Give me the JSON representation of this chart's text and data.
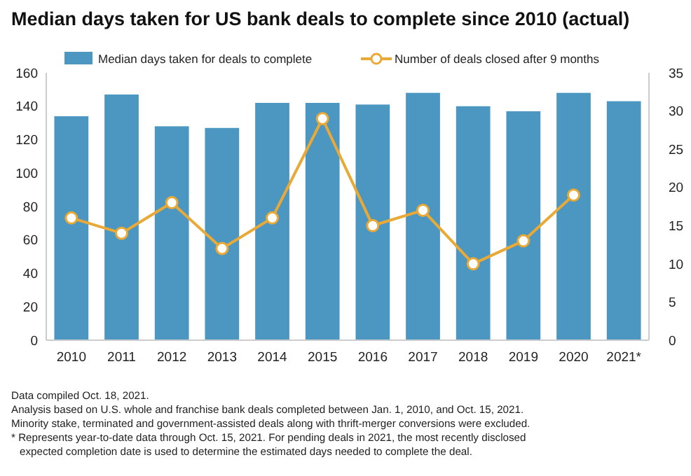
{
  "chart_data": {
    "type": "bar",
    "title": "Median days taken for US bank deals to complete since 2010 (actual)",
    "categories": [
      "2010",
      "2011",
      "2012",
      "2013",
      "2014",
      "2015",
      "2016",
      "2017",
      "2018",
      "2019",
      "2020",
      "2021*"
    ],
    "series": [
      {
        "name": "Median days taken for deals to complete",
        "color": "#4b97c2",
        "values": [
          134,
          147,
          128,
          127,
          142,
          142,
          141,
          148,
          140,
          137,
          148,
          143
        ]
      },
      {
        "name": "Number of deals closed after 9 months",
        "type": "line",
        "axis": "y2",
        "color": "#e9a936",
        "marker": "circle",
        "values": [
          16,
          14,
          18,
          12,
          16,
          29,
          15,
          17,
          10,
          13,
          19,
          null
        ]
      }
    ],
    "ylim": [
      0,
      160
    ],
    "yticks": [
      0,
      20,
      40,
      60,
      80,
      100,
      120,
      140,
      160
    ],
    "y2lim": [
      0,
      35
    ],
    "y2ticks": [
      0,
      5,
      10,
      15,
      20,
      25,
      30,
      35
    ],
    "legend": "top",
    "annotations": [
      "Data compiled Oct. 18, 2021.",
      "Analysis based on U.S. whole and franchise bank deals completed between Jan. 1, 2010, and Oct. 15, 2021.",
      "Minority stake, terminated and government-assisted deals along with thrift-merger conversions were excluded.",
      "* Represents year-to-date data through Oct. 15, 2021. For pending deals in 2021, the most recently disclosed expected completion date is used to determine the estimated days needed to complete the deal."
    ]
  }
}
